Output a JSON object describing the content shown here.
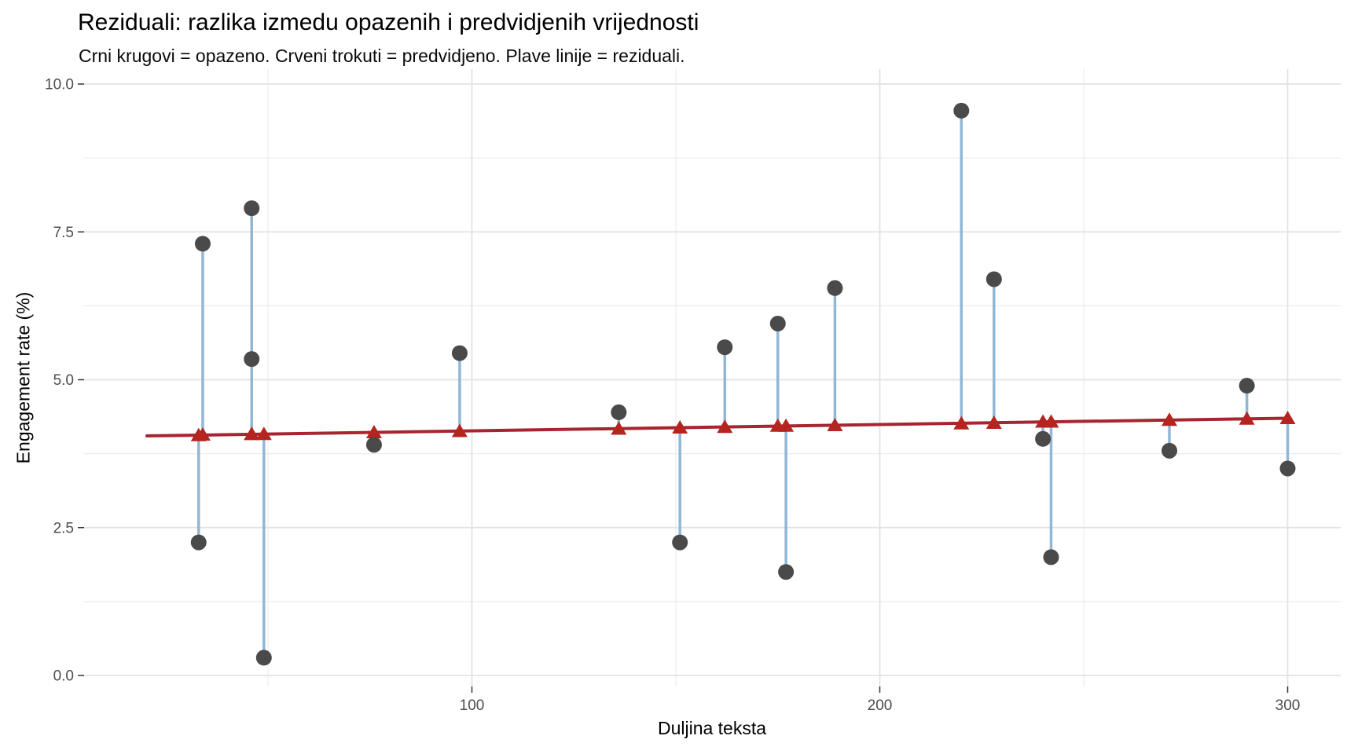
{
  "chart_data": {
    "type": "scatter",
    "title": "Reziduali: razlika izmedu opazenih i predvidjenih vrijednosti",
    "subtitle": "Crni krugovi = opazeno. Crveni trokuti = predvidjeno. Plave linije = reziduali.",
    "xlabel": "Duljina teksta",
    "ylabel": "Engagement rate (%)",
    "xlim": [
      4,
      313
    ],
    "ylim": [
      -0.2,
      10.25
    ],
    "grid": "on",
    "legend_position": "none",
    "x_ticks": [
      {
        "value": 100,
        "label": "100"
      },
      {
        "value": 200,
        "label": "200"
      },
      {
        "value": 300,
        "label": "300"
      }
    ],
    "y_ticks": [
      {
        "value": 0.0,
        "label": "0.0"
      },
      {
        "value": 2.5,
        "label": "2.5"
      },
      {
        "value": 5.0,
        "label": "5.0"
      },
      {
        "value": 7.5,
        "label": "7.5"
      },
      {
        "value": 10.0,
        "label": "10.0"
      }
    ],
    "x_minor_gridlines": [
      50,
      150,
      250
    ],
    "y_minor_gridlines": [
      1.25,
      3.75,
      6.25,
      8.75
    ],
    "series": [
      {
        "name": "opazeno (observed)",
        "marker": "circle",
        "color": "#4A4A4A"
      },
      {
        "name": "predvidjeno (predicted)",
        "marker": "triangle",
        "color": "#B5241F"
      },
      {
        "name": "reziduali (residual segments)",
        "marker": "vline",
        "color": "#90B7D6"
      }
    ],
    "points": [
      {
        "x": 33,
        "observed": 2.25,
        "predicted": 4.06
      },
      {
        "x": 34,
        "observed": 7.3,
        "predicted": 4.07
      },
      {
        "x": 46,
        "observed": 7.9,
        "predicted": 4.08
      },
      {
        "x": 46,
        "observed": 5.35,
        "predicted": 4.08
      },
      {
        "x": 49,
        "observed": 0.3,
        "predicted": 4.08
      },
      {
        "x": 76,
        "observed": 3.9,
        "predicted": 4.11
      },
      {
        "x": 97,
        "observed": 5.45,
        "predicted": 4.13
      },
      {
        "x": 136,
        "observed": 4.45,
        "predicted": 4.17
      },
      {
        "x": 151,
        "observed": 2.25,
        "predicted": 4.19
      },
      {
        "x": 162,
        "observed": 5.55,
        "predicted": 4.2
      },
      {
        "x": 175,
        "observed": 5.95,
        "predicted": 4.22
      },
      {
        "x": 177,
        "observed": 1.75,
        "predicted": 4.22
      },
      {
        "x": 189,
        "observed": 6.55,
        "predicted": 4.23
      },
      {
        "x": 220,
        "observed": 9.55,
        "predicted": 4.26
      },
      {
        "x": 228,
        "observed": 6.7,
        "predicted": 4.27
      },
      {
        "x": 240,
        "observed": 4.0,
        "predicted": 4.29
      },
      {
        "x": 242,
        "observed": 2.0,
        "predicted": 4.29
      },
      {
        "x": 271,
        "observed": 3.8,
        "predicted": 4.32
      },
      {
        "x": 290,
        "observed": 4.9,
        "predicted": 4.34
      },
      {
        "x": 300,
        "observed": 3.5,
        "predicted": 4.35
      }
    ],
    "trend_line": {
      "x": [
        20,
        300
      ],
      "y": [
        4.05,
        4.35
      ]
    },
    "colors": {
      "background": "#FFFFFF",
      "grid_major": "#E2E2E2",
      "grid_minor": "#ECECEC",
      "observed": "#4A4A4A",
      "predicted": "#B5241F",
      "trend": "#A72530",
      "residual": "#90B7D6",
      "tick_label": "#4D4D4D",
      "tick_mark": "#333333",
      "title": "#000000"
    }
  }
}
